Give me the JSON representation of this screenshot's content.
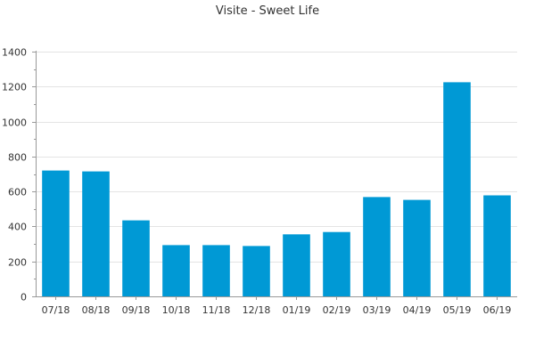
{
  "chart_data": {
    "type": "bar",
    "title": "Visite - Sweet Life",
    "xlabel": "",
    "ylabel": "",
    "categories": [
      "07/18",
      "08/18",
      "09/18",
      "10/18",
      "11/18",
      "12/18",
      "01/19",
      "02/19",
      "03/19",
      "04/19",
      "05/19",
      "06/19"
    ],
    "values": [
      720,
      715,
      435,
      293,
      293,
      288,
      355,
      368,
      568,
      552,
      1225,
      578
    ],
    "ylim": [
      0,
      1400
    ],
    "yticks": [
      0,
      200,
      400,
      600,
      800,
      1000,
      1200,
      1400
    ],
    "grid": true,
    "legend": "none",
    "bar_color": "#0099d5"
  }
}
